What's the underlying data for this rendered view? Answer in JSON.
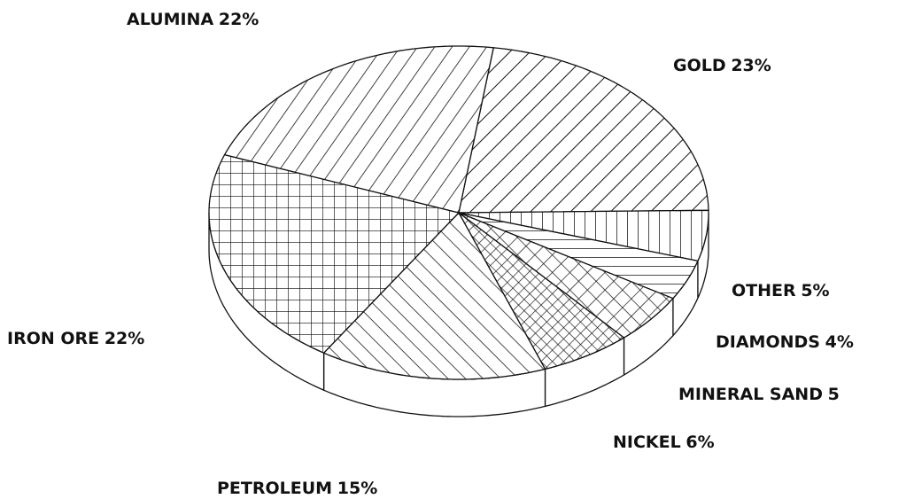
{
  "chart_data": {
    "type": "pie",
    "categories": [
      "GOLD",
      "OTHER",
      "DIAMONDS",
      "MINERAL SAND",
      "NICKEL",
      "PETROLEUM",
      "IRON ORE",
      "ALUMINA"
    ],
    "values": [
      23,
      5,
      4,
      5,
      6,
      15,
      22,
      22
    ],
    "value_labels": [
      "23%",
      "5%",
      "4%",
      "5",
      "6%",
      "15%",
      "22%",
      "22%"
    ],
    "color": "#111111"
  }
}
